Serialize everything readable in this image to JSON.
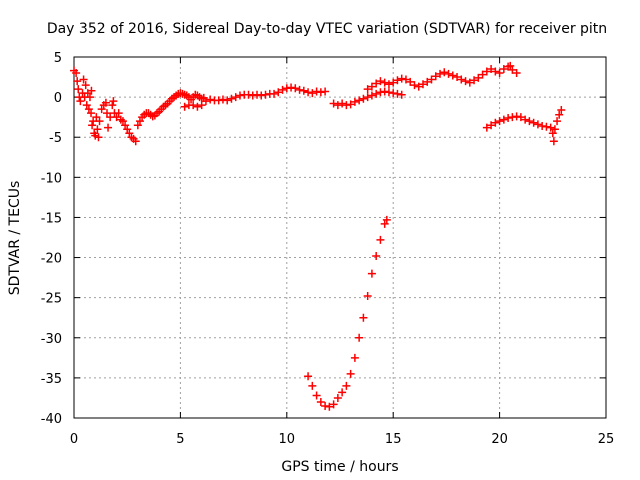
{
  "chart_data": {
    "type": "scatter",
    "title": "Day 352 of 2016, Sidereal Day-to-day VTEC variation (SDTVAR) for receiver pitn",
    "xlabel": "GPS time / hours",
    "ylabel": "SDTVAR / TECUs",
    "xlim": [
      0,
      25
    ],
    "ylim": [
      -40,
      5
    ],
    "xticks": [
      0,
      5,
      10,
      15,
      20,
      25
    ],
    "yticks": [
      5,
      0,
      -5,
      -10,
      -15,
      -20,
      -25,
      -30,
      -35,
      -40
    ],
    "xtick_labels": [
      "0",
      "5",
      "10",
      "15",
      "20",
      "25"
    ],
    "ytick_labels": [
      "5",
      "0",
      "-5",
      "-10",
      "-15",
      "-20",
      "-25",
      "-30",
      "-35",
      "-40"
    ],
    "grid": true,
    "marker": "+",
    "color": "#ff0000",
    "series": [
      {
        "name": "SDTVAR",
        "points": [
          [
            0.0,
            3.3
          ],
          [
            0.1,
            3.0
          ],
          [
            0.15,
            2.0
          ],
          [
            0.2,
            1.0
          ],
          [
            0.25,
            0.0
          ],
          [
            0.3,
            -0.5
          ],
          [
            0.4,
            0.5
          ],
          [
            0.45,
            2.2
          ],
          [
            0.5,
            0.0
          ],
          [
            0.55,
            1.5
          ],
          [
            0.6,
            -1.0
          ],
          [
            0.65,
            0.5
          ],
          [
            0.7,
            -1.5
          ],
          [
            0.75,
            0.0
          ],
          [
            0.8,
            -2.0
          ],
          [
            0.82,
            0.8
          ],
          [
            0.85,
            -3.5
          ],
          [
            0.9,
            -3.0
          ],
          [
            0.95,
            -4.5
          ],
          [
            1.0,
            -4.8
          ],
          [
            1.05,
            -2.5
          ],
          [
            1.1,
            -4.0
          ],
          [
            1.15,
            -5.0
          ],
          [
            1.2,
            -3.0
          ],
          [
            1.3,
            -1.5
          ],
          [
            1.4,
            -1.0
          ],
          [
            1.5,
            -0.7
          ],
          [
            1.55,
            -2.0
          ],
          [
            1.6,
            -3.8
          ],
          [
            1.7,
            -2.5
          ],
          [
            1.8,
            -1.0
          ],
          [
            1.85,
            -0.5
          ],
          [
            1.9,
            -2.0
          ],
          [
            2.0,
            -2.5
          ],
          [
            2.1,
            -2.0
          ],
          [
            2.2,
            -2.8
          ],
          [
            2.3,
            -3.0
          ],
          [
            2.4,
            -3.5
          ],
          [
            2.5,
            -4.0
          ],
          [
            2.6,
            -4.5
          ],
          [
            2.7,
            -5.0
          ],
          [
            2.8,
            -5.2
          ],
          [
            2.9,
            -5.5
          ],
          [
            3.0,
            -3.5
          ],
          [
            3.1,
            -3.0
          ],
          [
            3.2,
            -2.5
          ],
          [
            3.3,
            -2.2
          ],
          [
            3.4,
            -2.0
          ],
          [
            3.5,
            -2.0
          ],
          [
            3.6,
            -2.2
          ],
          [
            3.7,
            -2.4
          ],
          [
            3.8,
            -2.3
          ],
          [
            3.9,
            -2.0
          ],
          [
            4.0,
            -1.8
          ],
          [
            4.1,
            -1.5
          ],
          [
            4.2,
            -1.2
          ],
          [
            4.3,
            -1.0
          ],
          [
            4.4,
            -0.8
          ],
          [
            4.5,
            -0.5
          ],
          [
            4.6,
            -0.2
          ],
          [
            4.7,
            0.0
          ],
          [
            4.8,
            0.2
          ],
          [
            4.9,
            0.4
          ],
          [
            5.0,
            0.5
          ],
          [
            5.1,
            0.4
          ],
          [
            5.2,
            0.3
          ],
          [
            5.3,
            0.2
          ],
          [
            5.4,
            0.0
          ],
          [
            5.5,
            -0.3
          ],
          [
            5.6,
            0.0
          ],
          [
            5.7,
            0.3
          ],
          [
            5.8,
            0.2
          ],
          [
            5.9,
            0.0
          ],
          [
            6.0,
            -0.2
          ],
          [
            6.1,
            -0.1
          ],
          [
            5.2,
            -1.2
          ],
          [
            5.4,
            -1.0
          ],
          [
            5.6,
            -1.0
          ],
          [
            5.8,
            -1.2
          ],
          [
            6.0,
            -1.0
          ],
          [
            6.2,
            -0.5
          ],
          [
            6.4,
            -0.3
          ],
          [
            6.6,
            -0.4
          ],
          [
            6.8,
            -0.4
          ],
          [
            7.0,
            -0.3
          ],
          [
            7.2,
            -0.4
          ],
          [
            7.4,
            -0.2
          ],
          [
            7.6,
            0.0
          ],
          [
            7.8,
            0.2
          ],
          [
            8.0,
            0.3
          ],
          [
            8.2,
            0.3
          ],
          [
            8.4,
            0.2
          ],
          [
            8.6,
            0.3
          ],
          [
            8.8,
            0.2
          ],
          [
            9.0,
            0.3
          ],
          [
            9.2,
            0.4
          ],
          [
            9.4,
            0.4
          ],
          [
            9.6,
            0.6
          ],
          [
            9.8,
            0.9
          ],
          [
            10.0,
            1.1
          ],
          [
            10.2,
            1.2
          ],
          [
            10.4,
            1.1
          ],
          [
            10.6,
            0.9
          ],
          [
            10.8,
            0.8
          ],
          [
            11.0,
            0.6
          ],
          [
            11.2,
            0.5
          ],
          [
            11.4,
            0.7
          ],
          [
            11.6,
            0.6
          ],
          [
            11.8,
            0.7
          ],
          [
            11.0,
            -34.8
          ],
          [
            11.2,
            -36.0
          ],
          [
            11.4,
            -37.2
          ],
          [
            11.6,
            -38.0
          ],
          [
            11.8,
            -38.5
          ],
          [
            12.0,
            -38.6
          ],
          [
            12.2,
            -38.3
          ],
          [
            12.4,
            -37.5
          ],
          [
            12.6,
            -36.8
          ],
          [
            12.8,
            -36.0
          ],
          [
            13.0,
            -34.5
          ],
          [
            13.2,
            -32.5
          ],
          [
            13.4,
            -30.0
          ],
          [
            13.6,
            -27.5
          ],
          [
            13.8,
            -24.8
          ],
          [
            14.0,
            -22.0
          ],
          [
            14.2,
            -19.8
          ],
          [
            14.4,
            -17.8
          ],
          [
            14.6,
            -15.8
          ],
          [
            14.7,
            -15.3
          ],
          [
            12.2,
            -0.8
          ],
          [
            12.4,
            -1.0
          ],
          [
            12.6,
            -0.8
          ],
          [
            12.8,
            -1.0
          ],
          [
            13.0,
            -0.9
          ],
          [
            13.2,
            -0.6
          ],
          [
            13.4,
            -0.4
          ],
          [
            13.6,
            -0.2
          ],
          [
            13.8,
            0.0
          ],
          [
            14.0,
            0.2
          ],
          [
            14.2,
            0.4
          ],
          [
            14.4,
            0.6
          ],
          [
            14.6,
            0.7
          ],
          [
            14.8,
            0.6
          ],
          [
            15.0,
            0.5
          ],
          [
            15.2,
            0.4
          ],
          [
            15.4,
            0.3
          ],
          [
            13.8,
            1.0
          ],
          [
            14.0,
            1.3
          ],
          [
            14.2,
            1.7
          ],
          [
            14.4,
            2.0
          ],
          [
            14.6,
            1.8
          ],
          [
            14.8,
            1.6
          ],
          [
            15.0,
            1.8
          ],
          [
            15.2,
            2.1
          ],
          [
            15.4,
            2.3
          ],
          [
            15.6,
            2.2
          ],
          [
            15.8,
            1.9
          ],
          [
            16.0,
            1.5
          ],
          [
            16.2,
            1.3
          ],
          [
            16.4,
            1.6
          ],
          [
            16.6,
            1.9
          ],
          [
            16.8,
            2.2
          ],
          [
            17.0,
            2.6
          ],
          [
            17.2,
            2.9
          ],
          [
            17.4,
            3.1
          ],
          [
            17.6,
            2.9
          ],
          [
            17.8,
            2.7
          ],
          [
            18.0,
            2.5
          ],
          [
            18.2,
            2.2
          ],
          [
            18.4,
            2.0
          ],
          [
            18.6,
            1.8
          ],
          [
            18.8,
            2.1
          ],
          [
            19.0,
            2.4
          ],
          [
            19.2,
            2.8
          ],
          [
            19.4,
            3.2
          ],
          [
            19.6,
            3.5
          ],
          [
            19.8,
            3.2
          ],
          [
            20.0,
            3.0
          ],
          [
            20.2,
            3.5
          ],
          [
            20.4,
            3.8
          ],
          [
            20.5,
            3.9
          ],
          [
            20.6,
            3.4
          ],
          [
            20.8,
            3.0
          ],
          [
            19.4,
            -3.8
          ],
          [
            19.6,
            -3.5
          ],
          [
            19.8,
            -3.2
          ],
          [
            20.0,
            -3.0
          ],
          [
            20.2,
            -2.8
          ],
          [
            20.4,
            -2.6
          ],
          [
            20.6,
            -2.5
          ],
          [
            20.8,
            -2.4
          ],
          [
            21.0,
            -2.5
          ],
          [
            21.2,
            -2.8
          ],
          [
            21.4,
            -3.0
          ],
          [
            21.6,
            -3.2
          ],
          [
            21.8,
            -3.4
          ],
          [
            22.0,
            -3.6
          ],
          [
            22.2,
            -3.7
          ],
          [
            22.4,
            -3.8
          ],
          [
            22.5,
            -4.5
          ],
          [
            22.55,
            -5.5
          ],
          [
            22.6,
            -4.0
          ],
          [
            22.7,
            -3.0
          ],
          [
            22.8,
            -2.2
          ],
          [
            22.9,
            -1.6
          ]
        ]
      }
    ]
  }
}
